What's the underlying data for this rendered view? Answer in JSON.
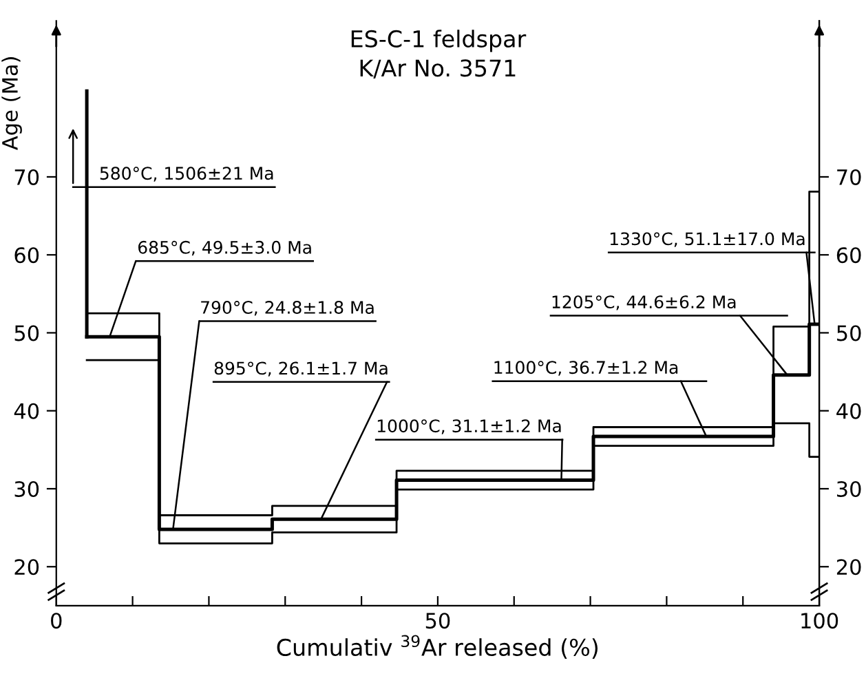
{
  "chart_data": {
    "type": "step",
    "title": "ES-C-1 feldspar",
    "subtitle": "K/Ar No. 3571",
    "xlabel": "Cumulativ $^{39}$Ar released (%)",
    "ylabel": "Age (Ma)",
    "series": [
      {
        "color": "#000000",
        "x": [
          4,
          13.5,
          28.3,
          44.6,
          70.4,
          94.0,
          98.7,
          100
        ],
        "values": [
          49.5,
          24.8,
          26.1,
          31.1,
          36.7,
          44.6,
          51.1,
          51.1
        ]
      },
      {
        "color": "#000000",
        "x": [
          4,
          13.5,
          28.3,
          44.6,
          70.4,
          94.0,
          98.7,
          100
        ],
        "values": [
          46.5,
          23.0,
          24.4,
          29.9,
          35.5,
          38.4,
          34.1,
          34.1
        ]
      },
      {
        "color": "#000000",
        "x": [
          4,
          13.5,
          28.3,
          44.6,
          70.4,
          94.0,
          98.7,
          100
        ],
        "values": [
          52.5,
          26.6,
          27.8,
          32.3,
          37.9,
          50.8,
          68.1,
          68.1
        ]
      },
      {
        "type": "line",
        "color": "#000000",
        "x": [
          4,
          4
        ],
        "values": [
          49.5,
          81
        ]
      }
    ],
    "annotations": [
      "580°C, 1506±21 Ma",
      {
        "text": "685°C, 49.5±3.0 Ma",
        "x": 7,
        "y": 49.5
      },
      {
        "text": "790°C, 24.8±1.8 Ma",
        "x": 15.3,
        "y": 24.8
      },
      {
        "text": "895°C, 26.1±1.7 Ma",
        "x": 34.7,
        "y": 26.1
      },
      {
        "text": "1000°C, 31.1±1.2 Ma",
        "x": 66.2,
        "y": 31.1
      },
      {
        "text": "1100°C, 36.7±1.2 Ma",
        "x": 85.2,
        "y": 36.7
      },
      {
        "text": "1205°C, 44.6±6.2 Ma",
        "x": 95.8,
        "y": 44.6
      },
      {
        "text": "1330°C, 51.1±17.0 Ma",
        "x": 99.4,
        "y": 51.1
      }
    ],
    "xlim": [
      0,
      100
    ],
    "ylim": [
      15,
      90
    ],
    "y2lim": [
      15,
      90
    ],
    "xticks": [
      0,
      {
        "value": 10,
        "label": null
      },
      {
        "value": 20,
        "label": null
      },
      {
        "value": 30,
        "label": null
      },
      {
        "value": 40,
        "label": null
      },
      50,
      {
        "value": 60,
        "label": null
      },
      {
        "value": 70,
        "label": null
      },
      {
        "value": 80,
        "label": null
      },
      {
        "value": 90,
        "label": null
      },
      100
    ],
    "yticks": [
      20,
      30,
      40,
      50,
      60,
      70
    ],
    "y2ticks": [
      20,
      30,
      40,
      50,
      60,
      70
    ],
    "grid": false,
    "line_style": "solid",
    "marker": "none"
  }
}
